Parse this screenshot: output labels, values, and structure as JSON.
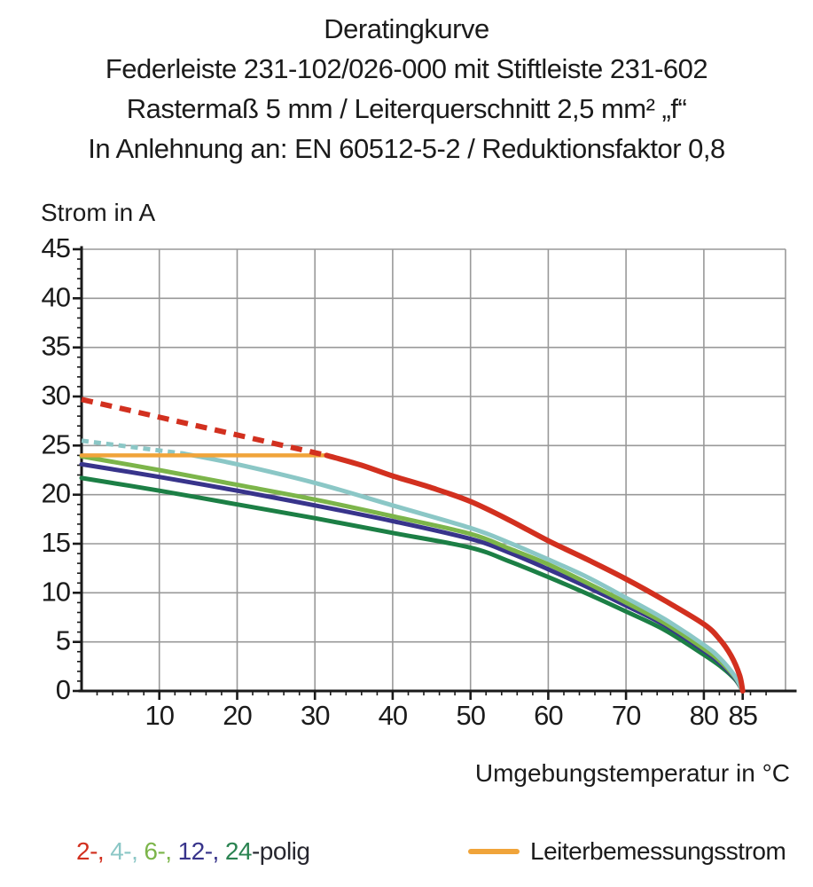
{
  "header": {
    "title": "Deratingkurve",
    "subtitle1": "Federleiste 231-102/026-000 mit Stiftleiste 231-602",
    "subtitle2": "Rastermaß 5 mm / Leiterquerschnitt 2,5 mm² „f“",
    "subtitle3": "In Anlehnung an: EN 60512-5-2 / Reduktionsfaktor 0,8"
  },
  "axes": {
    "y_title": "Strom in A",
    "x_title": "Umgebungstemperatur in °C"
  },
  "legend": {
    "poles": [
      {
        "label": "2-,",
        "color": "#d2301f"
      },
      {
        "label": "4-,",
        "color": "#8bc7c6"
      },
      {
        "label": "6-,",
        "color": "#7cb54a"
      },
      {
        "label": "12-,",
        "color": "#38348b"
      },
      {
        "label": "24",
        "color": "#2a8351"
      }
    ],
    "poles_suffix": "-polig",
    "rated_current_label": "Leiterbemessungsstrom",
    "rated_current_color": "#f0a43a"
  },
  "colors": {
    "grid": "#999999",
    "axis": "#1a1a1a",
    "text": "#1b1b1b"
  },
  "chart_data": {
    "type": "line",
    "title": "Deratingkurve",
    "xlabel": "Umgebungstemperatur in °C",
    "ylabel": "Strom in A",
    "xlim": [
      0,
      90.5
    ],
    "ylim": [
      0,
      45
    ],
    "grid_x": [
      10,
      20,
      30,
      40,
      50,
      60,
      70,
      80
    ],
    "grid_y": [
      5,
      10,
      15,
      20,
      25,
      30,
      35,
      40,
      45
    ],
    "x_minor_step": 2,
    "y_minor_step": 1,
    "x_ticks": [
      {
        "v": 10,
        "label": "10"
      },
      {
        "v": 20,
        "label": "20"
      },
      {
        "v": 30,
        "label": "30"
      },
      {
        "v": 40,
        "label": "40"
      },
      {
        "v": 50,
        "label": "50"
      },
      {
        "v": 60,
        "label": "60"
      },
      {
        "v": 70,
        "label": "70"
      },
      {
        "v": 80,
        "label": "80"
      },
      {
        "v": 85,
        "label": "85"
      }
    ],
    "y_ticks": [
      {
        "v": 0,
        "label": "0"
      },
      {
        "v": 5,
        "label": "5"
      },
      {
        "v": 10,
        "label": "10"
      },
      {
        "v": 15,
        "label": "15"
      },
      {
        "v": 20,
        "label": "20"
      },
      {
        "v": 25,
        "label": "25"
      },
      {
        "v": 30,
        "label": "30"
      },
      {
        "v": 35,
        "label": "35"
      },
      {
        "v": 40,
        "label": "40"
      },
      {
        "v": 45,
        "label": "45"
      }
    ],
    "draw_order": [
      "24-polig",
      "12-polig",
      "6-polig",
      "4-polig",
      "Leiterbemessungsstrom",
      "2-polig"
    ],
    "series": [
      {
        "name": "2-polig",
        "color": "#d2301f",
        "width": 6,
        "segments": [
          {
            "dash": "13 9",
            "points": [
              [
                0,
                29.7
              ],
              [
                31.5,
                24
              ]
            ]
          },
          {
            "dash": null,
            "points": [
              [
                31.5,
                24
              ],
              [
                36,
                23
              ],
              [
                40,
                21.9
              ],
              [
                45,
                20.7
              ],
              [
                50,
                19.3
              ],
              [
                55,
                17.4
              ],
              [
                60,
                15.3
              ],
              [
                65,
                13.4
              ],
              [
                70,
                11.4
              ],
              [
                75,
                9.2
              ],
              [
                80,
                6.8
              ],
              [
                82,
                5.3
              ],
              [
                83.5,
                3.6
              ],
              [
                84.6,
                1.6
              ],
              [
                85,
                0
              ]
            ]
          }
        ]
      },
      {
        "name": "4-polig",
        "color": "#8bc7c6",
        "width": 5,
        "segments": [
          {
            "dash": "8 6",
            "points": [
              [
                0,
                25.5
              ],
              [
                13,
                24.2
              ]
            ]
          },
          {
            "dash": null,
            "points": [
              [
                13,
                24.2
              ],
              [
                20,
                23.1
              ],
              [
                30,
                21.2
              ],
              [
                40,
                18.9
              ],
              [
                50,
                16.6
              ],
              [
                55,
                15.1
              ],
              [
                60,
                13.4
              ],
              [
                65,
                11.6
              ],
              [
                70,
                9.5
              ],
              [
                75,
                7.3
              ],
              [
                80,
                4.7
              ],
              [
                82,
                3.4
              ],
              [
                84,
                1.5
              ],
              [
                85,
                0
              ]
            ]
          }
        ]
      },
      {
        "name": "6-polig",
        "color": "#7cb54a",
        "width": 5,
        "segments": [
          {
            "dash": null,
            "points": [
              [
                0,
                23.9
              ],
              [
                10,
                22.5
              ],
              [
                20,
                21
              ],
              [
                30,
                19.5
              ],
              [
                40,
                17.8
              ],
              [
                50,
                16
              ],
              [
                55,
                14.5
              ],
              [
                60,
                12.9
              ],
              [
                65,
                11
              ],
              [
                70,
                9
              ],
              [
                75,
                6.9
              ],
              [
                80,
                4.3
              ],
              [
                82,
                3.1
              ],
              [
                84,
                1.4
              ],
              [
                85,
                0
              ]
            ]
          }
        ]
      },
      {
        "name": "12-polig",
        "color": "#38348b",
        "width": 5,
        "segments": [
          {
            "dash": null,
            "points": [
              [
                0,
                23.1
              ],
              [
                10,
                21.8
              ],
              [
                20,
                20.4
              ],
              [
                30,
                18.9
              ],
              [
                40,
                17.3
              ],
              [
                50,
                15.5
              ],
              [
                55,
                14.1
              ],
              [
                60,
                12.4
              ],
              [
                65,
                10.6
              ],
              [
                70,
                8.7
              ],
              [
                75,
                6.7
              ],
              [
                80,
                4.1
              ],
              [
                82,
                2.9
              ],
              [
                84,
                1.3
              ],
              [
                85,
                0
              ]
            ]
          }
        ]
      },
      {
        "name": "24-polig",
        "color": "#1c7f45",
        "width": 5,
        "segments": [
          {
            "dash": null,
            "points": [
              [
                0,
                21.7
              ],
              [
                10,
                20.4
              ],
              [
                20,
                19
              ],
              [
                30,
                17.6
              ],
              [
                40,
                16.1
              ],
              [
                50,
                14.6
              ],
              [
                55,
                13.2
              ],
              [
                60,
                11.6
              ],
              [
                65,
                9.9
              ],
              [
                70,
                8.1
              ],
              [
                75,
                6.2
              ],
              [
                80,
                3.7
              ],
              [
                82,
                2.6
              ],
              [
                84,
                1.2
              ],
              [
                85,
                0
              ]
            ]
          }
        ]
      },
      {
        "name": "Leiterbemessungsstrom",
        "color": "#f0a43a",
        "width": 4.5,
        "segments": [
          {
            "dash": null,
            "points": [
              [
                0,
                24
              ],
              [
                31.5,
                24
              ]
            ]
          }
        ]
      }
    ]
  }
}
